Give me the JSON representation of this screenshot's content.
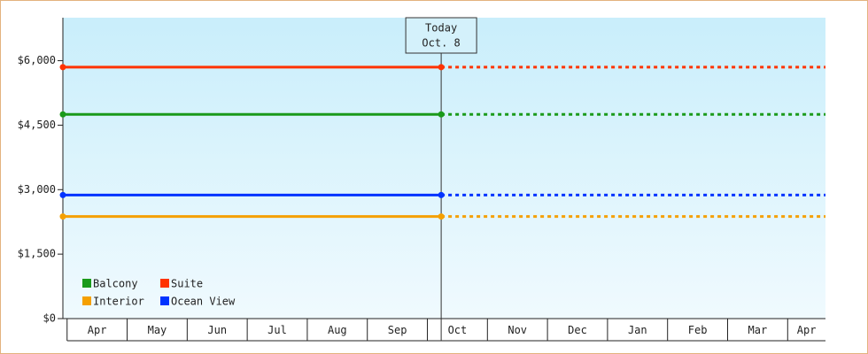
{
  "chart_data": {
    "type": "line",
    "x": [
      -0.07,
      6.23
    ],
    "xlim": [
      -0.07,
      12.63
    ],
    "xticks": [
      {
        "value": 0,
        "label": "Apr"
      },
      {
        "value": 1,
        "label": "May"
      },
      {
        "value": 2,
        "label": "Jun"
      },
      {
        "value": 3,
        "label": "Jul"
      },
      {
        "value": 4,
        "label": "Aug"
      },
      {
        "value": 5,
        "label": "Sep"
      },
      {
        "value": 6,
        "label": "Oct"
      },
      {
        "value": 7,
        "label": "Nov"
      },
      {
        "value": 8,
        "label": "Dec"
      },
      {
        "value": 9,
        "label": "Jan"
      },
      {
        "value": 10,
        "label": "Feb"
      },
      {
        "value": 11,
        "label": "Mar"
      },
      {
        "value": 12,
        "label": "Apr"
      }
    ],
    "ylim": [
      0,
      7000
    ],
    "yticks": [
      {
        "value": 0,
        "label": "$0"
      },
      {
        "value": 1500,
        "label": "$1,500"
      },
      {
        "value": 3000,
        "label": "$3,000"
      },
      {
        "value": 4500,
        "label": "$4,500"
      },
      {
        "value": 6000,
        "label": "$6,000"
      }
    ],
    "series": [
      {
        "name": "Balcony",
        "color": "#1a9a1a",
        "values": [
          4750,
          4750
        ]
      },
      {
        "name": "Suite",
        "color": "#ff3300",
        "values": [
          5850,
          5850
        ]
      },
      {
        "name": "Interior",
        "color": "#f5a000",
        "values": [
          2375,
          2375
        ]
      },
      {
        "name": "Ocean View",
        "color": "#0033ff",
        "values": [
          2875,
          2875
        ]
      }
    ],
    "projection": "dotted",
    "annotation": {
      "x": 6.23,
      "lines": [
        "Today",
        "Oct. 8"
      ]
    }
  }
}
